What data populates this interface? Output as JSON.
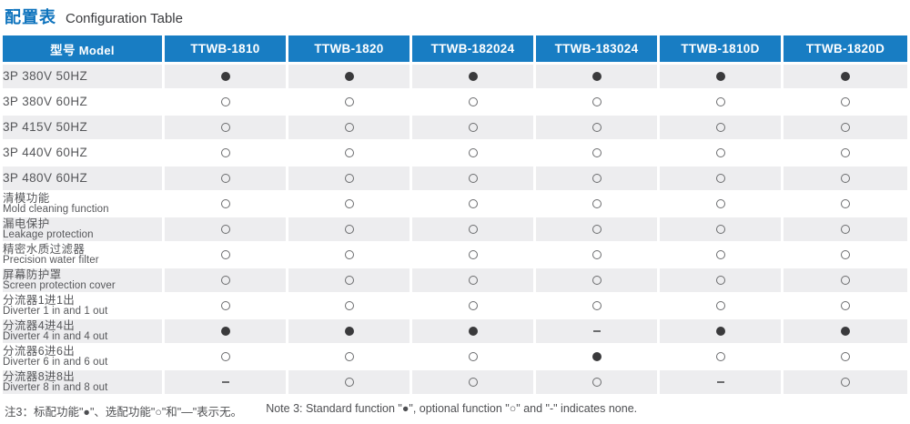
{
  "title": {
    "zh": "配置表",
    "en": "Configuration Table"
  },
  "table": {
    "model_header": {
      "zh": "型号",
      "en": "Model"
    },
    "columns": [
      "TTWB-1810",
      "TTWB-1820",
      "TTWB-182024",
      "TTWB-183024",
      "TTWB-1810D",
      "TTWB-1820D"
    ],
    "legend": {
      "standard": "●",
      "optional": "○",
      "none": "–"
    },
    "rows": [
      {
        "zh": "3P 380V 50HZ",
        "en": "",
        "values": [
          "standard",
          "standard",
          "standard",
          "standard",
          "standard",
          "standard"
        ]
      },
      {
        "zh": "3P 380V 60HZ",
        "en": "",
        "values": [
          "optional",
          "optional",
          "optional",
          "optional",
          "optional",
          "optional"
        ]
      },
      {
        "zh": "3P 415V 50HZ",
        "en": "",
        "values": [
          "optional",
          "optional",
          "optional",
          "optional",
          "optional",
          "optional"
        ]
      },
      {
        "zh": "3P 440V 60HZ",
        "en": "",
        "values": [
          "optional",
          "optional",
          "optional",
          "optional",
          "optional",
          "optional"
        ]
      },
      {
        "zh": "3P 480V 60HZ",
        "en": "",
        "values": [
          "optional",
          "optional",
          "optional",
          "optional",
          "optional",
          "optional"
        ]
      },
      {
        "zh": "清模功能",
        "en": "Mold cleaning function",
        "values": [
          "optional",
          "optional",
          "optional",
          "optional",
          "optional",
          "optional"
        ]
      },
      {
        "zh": "漏电保护",
        "en": "Leakage protection",
        "values": [
          "optional",
          "optional",
          "optional",
          "optional",
          "optional",
          "optional"
        ]
      },
      {
        "zh": "精密水质过滤器",
        "en": "Precision water filter",
        "values": [
          "optional",
          "optional",
          "optional",
          "optional",
          "optional",
          "optional"
        ]
      },
      {
        "zh": "屏幕防护罩",
        "en": "Screen protection cover",
        "values": [
          "optional",
          "optional",
          "optional",
          "optional",
          "optional",
          "optional"
        ]
      },
      {
        "zh": "分流器1进1出",
        "en": "Diverter 1 in and 1 out",
        "values": [
          "optional",
          "optional",
          "optional",
          "optional",
          "optional",
          "optional"
        ]
      },
      {
        "zh": "分流器4进4出",
        "en": "Diverter 4 in and 4 out",
        "values": [
          "standard",
          "standard",
          "standard",
          "none",
          "standard",
          "standard"
        ]
      },
      {
        "zh": "分流器6进6出",
        "en": "Diverter 6 in and 6 out",
        "values": [
          "optional",
          "optional",
          "optional",
          "standard",
          "optional",
          "optional"
        ]
      },
      {
        "zh": "分流器8进8出",
        "en": "Diverter 8 in and 8 out",
        "values": [
          "none",
          "optional",
          "optional",
          "optional",
          "none",
          "optional"
        ]
      }
    ]
  },
  "note": {
    "zh": "注3：标配功能\"●\"、选配功能\"○\"和\"—\"表示无。",
    "en": "Note 3: Standard function \"●\", optional function \"○\" and \"-\" indicates none."
  }
}
